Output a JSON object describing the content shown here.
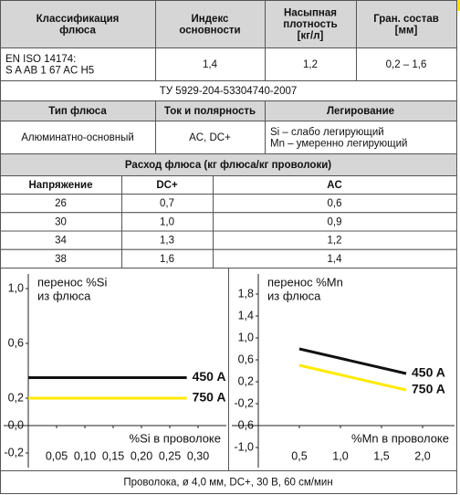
{
  "table": {
    "header": [
      [
        "Классификация",
        "флюса"
      ],
      [
        "Индекс",
        "основности"
      ],
      [
        "Насыпная",
        "плотность",
        "[кг/л]"
      ],
      [
        "Гран. состав",
        "[мм]"
      ]
    ],
    "classification": [
      [
        "EN ISO 14174:",
        "S A AB 1 67 AC H5"
      ],
      "1,4",
      "1,2",
      "0,2 – 1,6"
    ],
    "standard": "ТУ 5929-204-53304740-2007",
    "header2": [
      "Тип флюса",
      "Ток и полярность",
      "Легирование"
    ],
    "row2": [
      "Алюминатно-основный",
      "AC, DC+",
      [
        "Si – слабо легирующий",
        "Mn – умеренно легирующий"
      ]
    ],
    "consumption_title": "Расход флюса (кг флюса/кг проволоки)",
    "consumption_header": [
      "Напряжение",
      "DC+",
      "AC"
    ],
    "consumption_rows": [
      [
        "26",
        "0,7",
        "0,6"
      ],
      [
        "30",
        "1,0",
        "0,9"
      ],
      [
        "34",
        "1,3",
        "1,2"
      ],
      [
        "38",
        "1,6",
        "1,4"
      ]
    ]
  },
  "charts": [
    {
      "type": "line",
      "y_label": [
        "перенос %Si",
        "из флюса"
      ],
      "x_label": "%Si в проволоке",
      "xlim": [
        0,
        0.32
      ],
      "ylim": [
        -0.2,
        1.0
      ],
      "xticks": [
        {
          "value": 0.05,
          "label": "0,05"
        },
        {
          "value": 0.1,
          "label": "0,10"
        },
        {
          "value": 0.15,
          "label": "0,15"
        },
        {
          "value": 0.2,
          "label": "0,20"
        },
        {
          "value": 0.25,
          "label": "0,25"
        },
        {
          "value": 0.3,
          "label": "0,30"
        }
      ],
      "yticks": [
        {
          "value": 1.0,
          "label": "1,0"
        },
        {
          "value": 0.6,
          "label": "0,6"
        },
        {
          "value": 0.2,
          "label": "0,2"
        },
        {
          "value": 0,
          "label": "0,0"
        },
        {
          "value": -0.2,
          "label": "-0,2"
        }
      ],
      "series": [
        {
          "name": "450 A",
          "color": "#111111",
          "x": [
            0,
            0.28
          ],
          "values": [
            0.35,
            0.35
          ]
        },
        {
          "name": "750 A",
          "color": "#ffea00",
          "x": [
            0,
            0.28
          ],
          "values": [
            0.2,
            0.2
          ]
        }
      ]
    },
    {
      "type": "line",
      "y_label": [
        "перенос %Mn",
        "из флюса"
      ],
      "x_label": "%Mn в проволоке",
      "xlim": [
        0,
        2.2
      ],
      "ylim": [
        -1.0,
        1.8
      ],
      "xticks": [
        {
          "value": 0.5,
          "label": "0,5"
        },
        {
          "value": 1.0,
          "label": "1,0"
        },
        {
          "value": 1.5,
          "label": "1,5"
        },
        {
          "value": 2.0,
          "label": "2,0"
        }
      ],
      "yticks": [
        {
          "value": 1.8,
          "label": "1,8"
        },
        {
          "value": 1.4,
          "label": "1,4"
        },
        {
          "value": 1.0,
          "label": "1,0"
        },
        {
          "value": 0.6,
          "label": "0,6"
        },
        {
          "value": 0.2,
          "label": "0,2"
        },
        {
          "value": -0.2,
          "label": "-0,2"
        },
        {
          "value": -0.6,
          "label": "-0,6"
        },
        {
          "value": -1.0,
          "label": "-1,0"
        }
      ],
      "series": [
        {
          "name": "450 A",
          "color": "#111111",
          "x": [
            0.5,
            1.8
          ],
          "values": [
            0.8,
            0.35
          ]
        },
        {
          "name": "750 A",
          "color": "#ffea00",
          "x": [
            0.5,
            1.8
          ],
          "values": [
            0.5,
            0.05
          ]
        }
      ]
    }
  ],
  "footer": "Проволока, ø 4,0 мм, DC+, 30 В, 60 см/мин"
}
